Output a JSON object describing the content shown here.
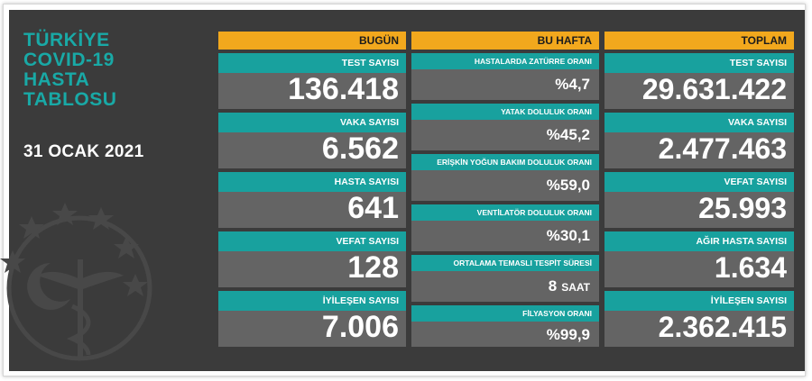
{
  "title_lines": [
    "TÜRKİYE",
    "COVID-19",
    "HASTA",
    "TABLOSU"
  ],
  "date": "31 OCAK 2021",
  "colors": {
    "panel": "#3b3b3b",
    "header": "#f2a81d",
    "label": "#18a19e",
    "value_bg": "#646464",
    "title": "#19a9a6"
  },
  "today": {
    "header": "BUGÜN",
    "items": [
      {
        "label": "TEST SAYISI",
        "value": "136.418"
      },
      {
        "label": "VAKA SAYISI",
        "value": "6.562"
      },
      {
        "label": "HASTA SAYISI",
        "value": "641"
      },
      {
        "label": "VEFAT SAYISI",
        "value": "128"
      },
      {
        "label": "İYİLEŞEN SAYISI",
        "value": "7.006"
      }
    ]
  },
  "week": {
    "header": "BU HAFTA",
    "items": [
      {
        "label": "HASTALARDA ZATÜRRE ORANI",
        "value": "%4,7",
        "unit": ""
      },
      {
        "label": "YATAK DOLULUK ORANI",
        "value": "%45,2",
        "unit": ""
      },
      {
        "label": "ERİŞKİN YOĞUN BAKIM DOLULUK ORANI",
        "value": "%59,0",
        "unit": ""
      },
      {
        "label": "VENTİLATÖR DOLULUK ORANI",
        "value": "%30,1",
        "unit": ""
      },
      {
        "label": "ORTALAMA TEMASLI TESPİT SÜRESİ",
        "value": "8",
        "unit": "SAAT"
      },
      {
        "label": "FİLYASYON ORANI",
        "value": "%99,9",
        "unit": ""
      }
    ]
  },
  "total": {
    "header": "TOPLAM",
    "items": [
      {
        "label": "TEST SAYISI",
        "value": "29.631.422"
      },
      {
        "label": "VAKA SAYISI",
        "value": "2.477.463"
      },
      {
        "label": "VEFAT SAYISI",
        "value": "25.993"
      },
      {
        "label": "AĞIR HASTA SAYISI",
        "value": "1.634"
      },
      {
        "label": "İYİLEŞEN SAYISI",
        "value": "2.362.415"
      }
    ]
  }
}
